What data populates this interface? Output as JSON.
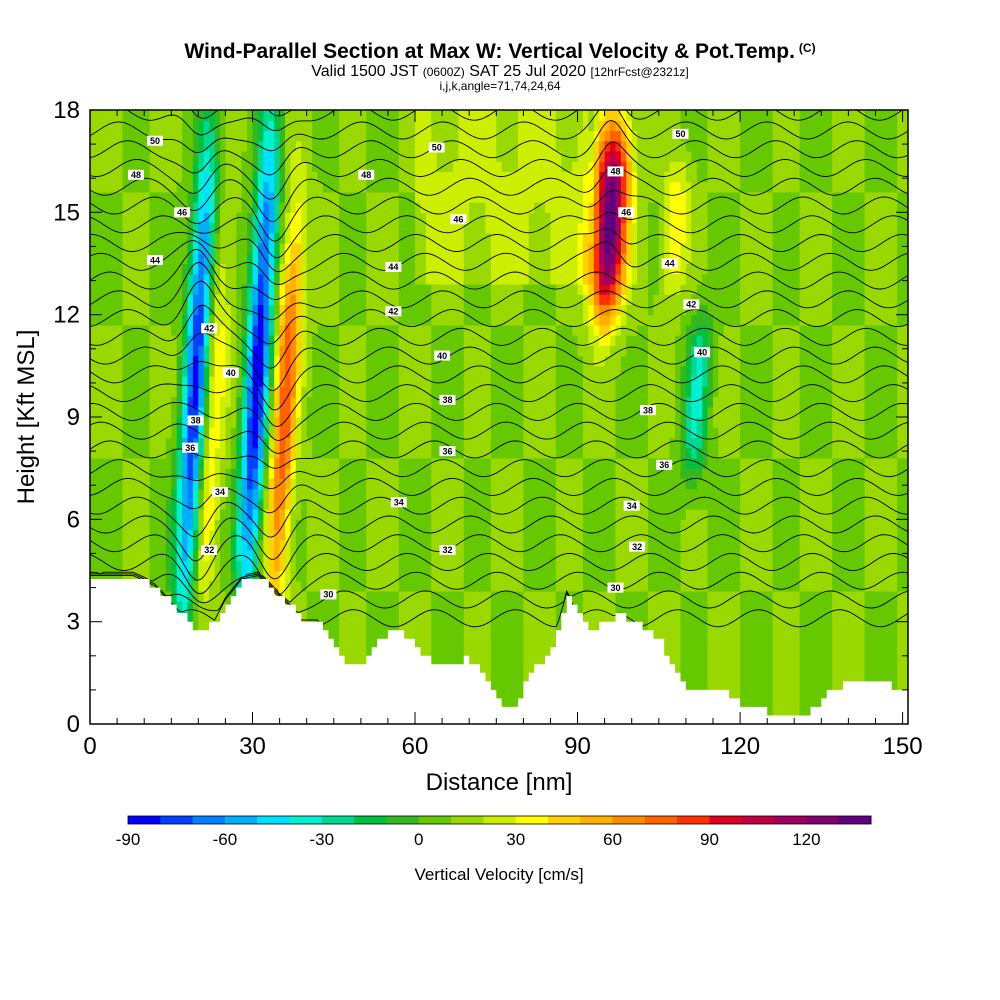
{
  "title": {
    "main": "Wind-Parallel Section at Max W: Vertical Velocity & Pot.Temp.",
    "copyright": "(C)",
    "valid_prefix": "Valid 1500 JST",
    "valid_utc": "(0600Z)",
    "valid_date": "SAT 25 Jul 2020",
    "forecast": "[12hrFcst@2321z]",
    "params": "i,j,k,angle=71,74,24,64"
  },
  "chart_data": {
    "type": "heatmap",
    "xlabel": "Distance [nm]",
    "ylabel": "Height [Kft MSL]",
    "xlim": [
      0,
      151
    ],
    "ylim": [
      0,
      18
    ],
    "x_ticks": [
      0,
      30,
      60,
      90,
      120,
      150
    ],
    "y_ticks": [
      0,
      3,
      6,
      9,
      12,
      15,
      18
    ],
    "colorbar": {
      "label": "Vertical Velocity [cm/s]",
      "min": -90,
      "max": 140,
      "step": 10,
      "tick_labels": [
        -90,
        -60,
        -30,
        0,
        30,
        60,
        90,
        120
      ],
      "colors": [
        "#0000ff",
        "#0040ff",
        "#0080ff",
        "#00b0ff",
        "#00e0ff",
        "#00f0d0",
        "#00d890",
        "#00c040",
        "#33b820",
        "#66c800",
        "#99d800",
        "#ccee00",
        "#ffff00",
        "#ffd000",
        "#ffb000",
        "#ff8c00",
        "#ff6000",
        "#ff3000",
        "#e00020",
        "#c00040",
        "#a00060",
        "#800070",
        "#600080"
      ]
    },
    "vertical_velocity_features": [
      {
        "x": 19.5,
        "z_bottom": 3.0,
        "z_top": 17.0,
        "w": -80
      },
      {
        "x": 22.5,
        "z_bottom": 3.0,
        "z_top": 15.0,
        "w": 40
      },
      {
        "x": 31.0,
        "z_bottom": 3.5,
        "z_top": 17.5,
        "w": -85
      },
      {
        "x": 36.0,
        "z_bottom": 3.5,
        "z_top": 15.0,
        "w": 75
      },
      {
        "x": 96.0,
        "z_bottom": 12.0,
        "z_top": 17.5,
        "w": 140
      },
      {
        "x": 108.0,
        "z_bottom": 12.5,
        "z_top": 16.5,
        "w": 40
      },
      {
        "x": 112.0,
        "z_bottom": 7.0,
        "z_top": 12.0,
        "w": -30
      }
    ],
    "theta_contours": [
      {
        "level": "30",
        "label_x": 44,
        "label_z": 3.8
      },
      {
        "level": "30",
        "label_x": 97,
        "label_z": 4.0
      },
      {
        "level": "32",
        "label_x": 22,
        "label_z": 5.1
      },
      {
        "level": "32",
        "label_x": 66,
        "label_z": 5.1
      },
      {
        "level": "32",
        "label_x": 101,
        "label_z": 5.2
      },
      {
        "level": "34",
        "label_x": 24,
        "label_z": 6.8
      },
      {
        "level": "34",
        "label_x": 57,
        "label_z": 6.5
      },
      {
        "level": "34",
        "label_x": 100,
        "label_z": 6.4
      },
      {
        "level": "36",
        "label_x": 18.5,
        "label_z": 8.1
      },
      {
        "level": "36",
        "label_x": 66,
        "label_z": 8.0
      },
      {
        "level": "36",
        "label_x": 106,
        "label_z": 7.6
      },
      {
        "level": "38",
        "label_x": 19.5,
        "label_z": 8.9
      },
      {
        "level": "38",
        "label_x": 66,
        "label_z": 9.5
      },
      {
        "level": "38",
        "label_x": 103,
        "label_z": 9.2
      },
      {
        "level": "40",
        "label_x": 26,
        "label_z": 10.3
      },
      {
        "level": "40",
        "label_x": 65,
        "label_z": 10.8
      },
      {
        "level": "40",
        "label_x": 113,
        "label_z": 10.9
      },
      {
        "level": "42",
        "label_x": 22,
        "label_z": 11.6
      },
      {
        "level": "42",
        "label_x": 56,
        "label_z": 12.1
      },
      {
        "level": "42",
        "label_x": 111,
        "label_z": 12.3
      },
      {
        "level": "44",
        "label_x": 12,
        "label_z": 13.6
      },
      {
        "level": "44",
        "label_x": 56,
        "label_z": 13.4
      },
      {
        "level": "44",
        "label_x": 107,
        "label_z": 13.5
      },
      {
        "level": "46",
        "label_x": 17,
        "label_z": 15.0
      },
      {
        "level": "46",
        "label_x": 68,
        "label_z": 14.8
      },
      {
        "level": "46",
        "label_x": 99,
        "label_z": 15.0
      },
      {
        "level": "48",
        "label_x": 8.5,
        "label_z": 16.1
      },
      {
        "level": "48",
        "label_x": 51,
        "label_z": 16.1
      },
      {
        "level": "48",
        "label_x": 97,
        "label_z": 16.2
      },
      {
        "level": "50",
        "label_x": 12,
        "label_z": 17.1
      },
      {
        "level": "50",
        "label_x": 64,
        "label_z": 16.9
      },
      {
        "level": "50",
        "label_x": 109,
        "label_z": 17.3
      }
    ],
    "terrain_height_kft": [
      [
        0,
        4.3
      ],
      [
        8,
        4.3
      ],
      [
        12,
        4.0
      ],
      [
        15,
        3.5
      ],
      [
        18,
        3.0
      ],
      [
        20,
        2.7
      ],
      [
        23,
        3.0
      ],
      [
        25,
        3.6
      ],
      [
        28,
        4.2
      ],
      [
        31,
        4.3
      ],
      [
        34,
        3.8
      ],
      [
        37,
        3.4
      ],
      [
        39,
        3.0
      ],
      [
        42,
        3.0
      ],
      [
        44,
        2.5
      ],
      [
        46,
        2.0
      ],
      [
        48,
        1.7
      ],
      [
        51,
        1.9
      ],
      [
        53,
        2.4
      ],
      [
        56,
        2.8
      ],
      [
        59,
        2.5
      ],
      [
        61,
        2.0
      ],
      [
        63,
        1.8
      ],
      [
        66,
        1.8
      ],
      [
        69,
        1.9
      ],
      [
        71,
        1.7
      ],
      [
        73,
        1.2
      ],
      [
        75,
        0.8
      ],
      [
        77,
        0.4
      ],
      [
        79,
        0.8
      ],
      [
        81,
        1.5
      ],
      [
        84,
        2.0
      ],
      [
        86,
        2.7
      ],
      [
        88,
        3.8
      ],
      [
        90,
        3.2
      ],
      [
        92,
        2.8
      ],
      [
        95,
        3.0
      ],
      [
        98,
        3.2
      ],
      [
        101,
        2.9
      ],
      [
        103,
        2.7
      ],
      [
        105,
        2.4
      ],
      [
        107,
        1.8
      ],
      [
        109,
        1.2
      ],
      [
        111,
        1.0
      ],
      [
        114,
        1.0
      ],
      [
        117,
        0.9
      ],
      [
        120,
        0.6
      ],
      [
        123,
        0.4
      ],
      [
        128,
        0.3
      ],
      [
        134,
        0.4
      ],
      [
        136,
        0.9
      ],
      [
        138,
        1.1
      ],
      [
        141,
        1.3
      ],
      [
        145,
        1.3
      ],
      [
        148,
        1.1
      ],
      [
        151,
        1.0
      ]
    ]
  }
}
